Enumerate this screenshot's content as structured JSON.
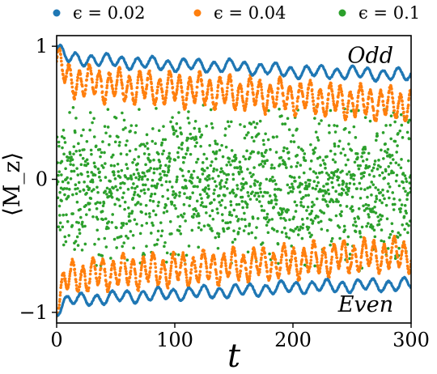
{
  "chart_data": {
    "type": "scatter",
    "xlabel": "t",
    "ylabel": "⟨M_z⟩",
    "xlim": [
      0,
      300
    ],
    "ylim": [
      -1.08,
      1.08
    ],
    "x_ticks": [
      0,
      100,
      200,
      300
    ],
    "y_ticks": [
      {
        "value": -1,
        "label": "−1"
      },
      {
        "value": 0,
        "label": "0"
      },
      {
        "value": 1,
        "label": "1"
      }
    ],
    "grid": false,
    "legend_position": "top, outside, horizontal",
    "annotations": [
      {
        "text": "Odd",
        "x": 285,
        "y": 0.93
      },
      {
        "text": "Even",
        "x": 285,
        "y": -0.94
      }
    ],
    "series": [
      {
        "name": "ϵ = 0.02",
        "color": "#1f77b4",
        "branches": [
          {
            "label": "Odd",
            "mean": [
              [
                0,
                0.98
              ],
              [
                10,
                0.91
              ],
              [
                30,
                0.9
              ],
              [
                60,
                0.88
              ],
              [
                100,
                0.86
              ],
              [
                150,
                0.85
              ],
              [
                200,
                0.81
              ],
              [
                250,
                0.8
              ],
              [
                300,
                0.78
              ]
            ],
            "amplitude": 0.04,
            "period": 13
          },
          {
            "label": "Even",
            "mean": [
              [
                0,
                -0.98
              ],
              [
                10,
                -0.91
              ],
              [
                30,
                -0.9
              ],
              [
                60,
                -0.88
              ],
              [
                100,
                -0.86
              ],
              [
                150,
                -0.84
              ],
              [
                200,
                -0.81
              ],
              [
                250,
                -0.8
              ],
              [
                300,
                -0.79
              ]
            ],
            "amplitude": 0.04,
            "period": 13
          }
        ]
      },
      {
        "name": "ϵ = 0.04",
        "color": "#ff7f0e",
        "branches": [
          {
            "label": "Odd",
            "mean": [
              [
                0,
                0.9
              ],
              [
                10,
                0.75
              ],
              [
                50,
                0.7
              ],
              [
                100,
                0.68
              ],
              [
                150,
                0.65
              ],
              [
                200,
                0.62
              ],
              [
                250,
                0.58
              ],
              [
                300,
                0.56
              ]
            ],
            "amplitude": 0.1,
            "period": 8.5
          },
          {
            "label": "Even",
            "mean": [
              [
                0,
                -0.9
              ],
              [
                10,
                -0.74
              ],
              [
                50,
                -0.7
              ],
              [
                100,
                -0.68
              ],
              [
                150,
                -0.65
              ],
              [
                200,
                -0.62
              ],
              [
                250,
                -0.58
              ],
              [
                300,
                -0.56
              ]
            ],
            "amplitude": 0.1,
            "period": 8.5
          }
        ]
      },
      {
        "name": "ϵ = 0.1",
        "color": "#2ca02c",
        "distribution": {
          "center": -0.05,
          "spread": 0.25,
          "max_extent": 0.6
        }
      }
    ]
  }
}
